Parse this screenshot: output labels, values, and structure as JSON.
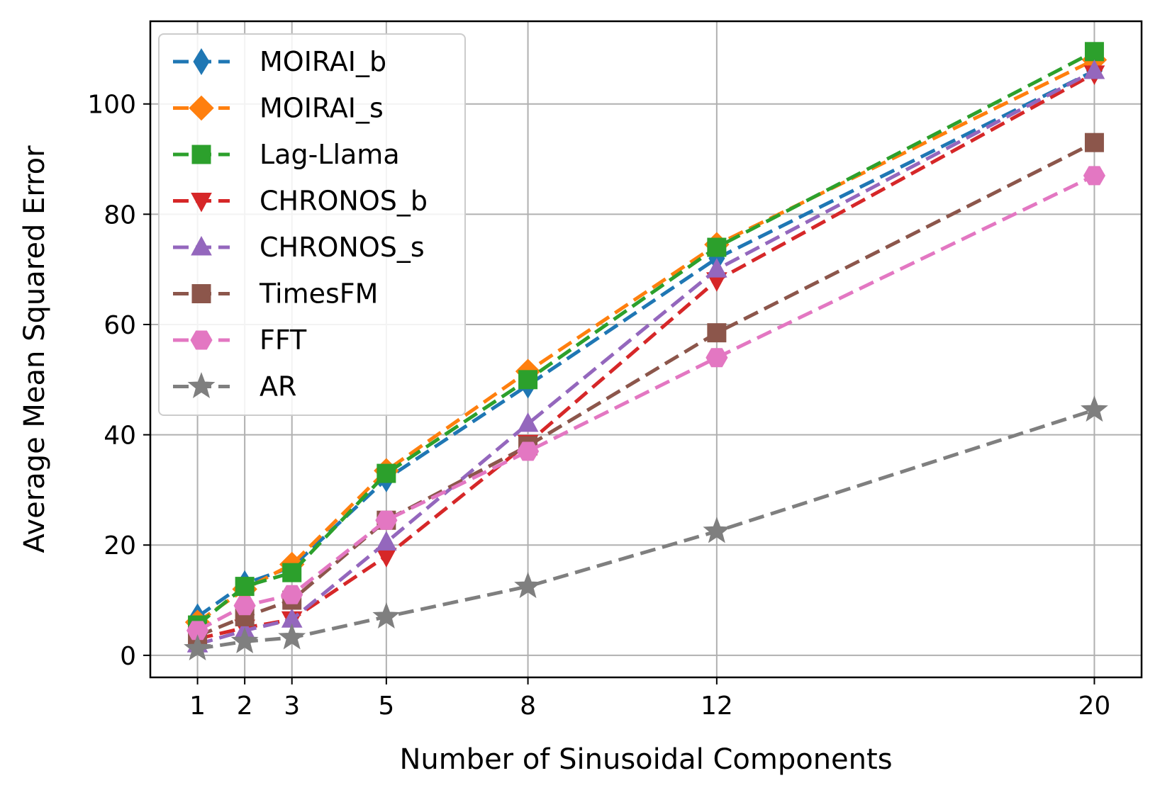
{
  "chart_data": {
    "type": "line",
    "title": "",
    "xlabel": "Number of Sinusoidal Components",
    "ylabel": "Average Mean Squared Error",
    "x": [
      1,
      2,
      3,
      5,
      8,
      12,
      20
    ],
    "xticks": [
      1,
      2,
      3,
      5,
      8,
      12,
      20
    ],
    "yticks": [
      0,
      20,
      40,
      60,
      80,
      100
    ],
    "xlim": [
      0.0,
      21.0
    ],
    "ylim": [
      -4,
      115
    ],
    "grid": true,
    "legend_position": "top-left",
    "series": [
      {
        "name": "MOIRAI_b",
        "color": "#1f77b4",
        "marker": "thin_diamond",
        "values": [
          7.0,
          13.0,
          16.0,
          32.0,
          49.0,
          72.0,
          106.0
        ]
      },
      {
        "name": "MOIRAI_s",
        "color": "#ff7f0e",
        "marker": "diamond",
        "values": [
          6.0,
          12.0,
          16.5,
          33.5,
          51.5,
          74.5,
          108.0
        ]
      },
      {
        "name": "Lag-Llama",
        "color": "#2ca02c",
        "marker": "square",
        "values": [
          5.5,
          12.5,
          15.0,
          33.0,
          50.0,
          74.0,
          109.5
        ]
      },
      {
        "name": "CHRONOS_b",
        "color": "#d62728",
        "marker": "triangle_down",
        "values": [
          3.0,
          5.0,
          6.5,
          18.0,
          38.5,
          68.0,
          105.5
        ]
      },
      {
        "name": "CHRONOS_s",
        "color": "#9467bd",
        "marker": "triangle_up",
        "values": [
          2.0,
          4.5,
          6.5,
          20.5,
          42.0,
          70.0,
          106.0
        ]
      },
      {
        "name": "TimesFM",
        "color": "#8c564b",
        "marker": "square",
        "values": [
          3.5,
          7.0,
          10.0,
          24.5,
          38.0,
          58.5,
          93.0
        ]
      },
      {
        "name": "FFT",
        "color": "#e377c2",
        "marker": "hexagon",
        "values": [
          4.5,
          9.0,
          11.0,
          24.5,
          37.0,
          54.0,
          87.0
        ]
      },
      {
        "name": "AR",
        "color": "#7f7f7f",
        "marker": "star",
        "values": [
          1.2,
          2.5,
          3.2,
          7.0,
          12.5,
          22.5,
          44.5
        ]
      }
    ]
  }
}
